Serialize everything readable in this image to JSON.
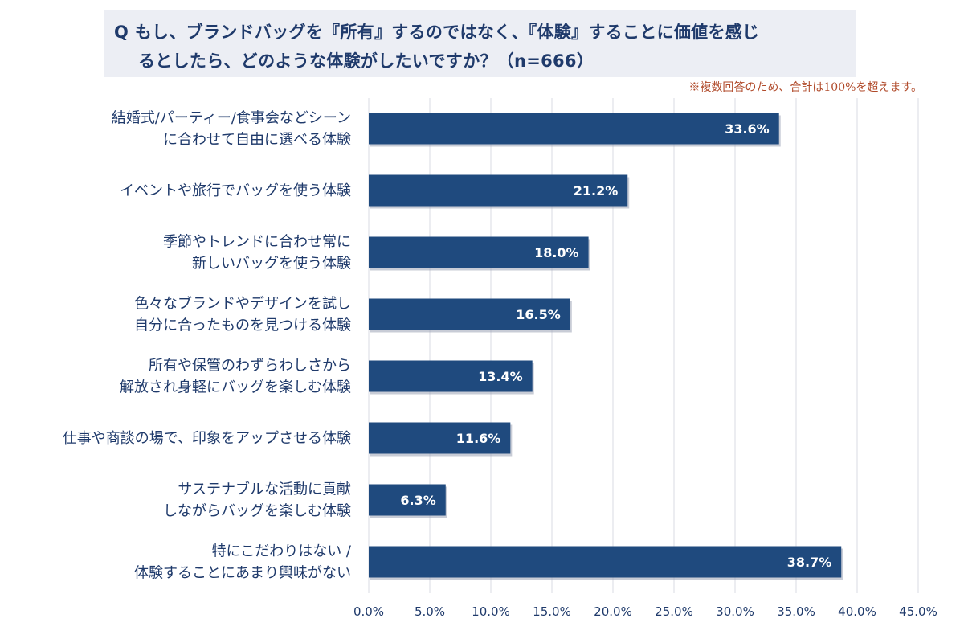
{
  "title": {
    "line1": "Q もし、ブランドバッグを『所有』するのではなく、『体験』することに価値を感じ",
    "line2": "るとしたら、どのような体験がしたいですか？（n=666）"
  },
  "note": "※複数回答のため、合計は100%を超えます。",
  "chart_data": {
    "type": "bar",
    "orientation": "horizontal",
    "categories": [
      [
        "結婚式/パーティー/食事会などシーン",
        "に合わせて自由に選べる体験"
      ],
      [
        "イベントや旅行でバッグを使う体験"
      ],
      [
        "季節やトレンドに合わせ常に",
        "新しいバッグを使う体験"
      ],
      [
        "色々なブランドやデザインを試し",
        "自分に合ったものを見つける体験"
      ],
      [
        "所有や保管のわずらわしさから",
        "解放され身軽にバッグを楽しむ体験"
      ],
      [
        "仕事や商談の場で、印象をアップさせる体験"
      ],
      [
        "サステナブルな活動に貢献",
        "しながらバッグを楽しむ体験"
      ],
      [
        "特にこだわりはない /",
        "体験することにあまり興味がない"
      ]
    ],
    "values": [
      33.6,
      21.2,
      18.0,
      16.5,
      13.4,
      11.6,
      6.3,
      38.7
    ],
    "value_labels": [
      "33.6%",
      "21.2%",
      "18.0%",
      "16.5%",
      "13.4%",
      "11.6%",
      "6.3%",
      "38.7%"
    ],
    "xlim": [
      0,
      45
    ],
    "xticks": [
      0,
      5,
      10,
      15,
      20,
      25,
      30,
      35,
      40,
      45
    ],
    "xtick_labels": [
      "0.0%",
      "5.0%",
      "10.0%",
      "15.0%",
      "20.0%",
      "25.0%",
      "30.0%",
      "35.0%",
      "40.0%",
      "45.0%"
    ],
    "grid": true,
    "bar_color": "#1f4a7e",
    "grid_color": "#d9dbe3"
  }
}
